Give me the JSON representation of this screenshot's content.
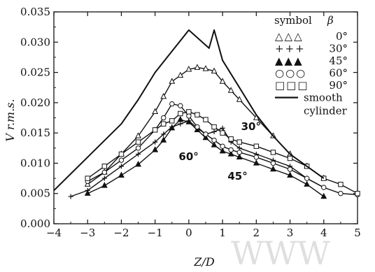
{
  "chart_data": {
    "type": "line",
    "xlabel": "Z/D",
    "ylabel": "V r.m.s.",
    "xlim": [
      -4,
      5
    ],
    "ylim": [
      0,
      0.035
    ],
    "x_ticks": [
      "−4",
      "−3",
      "−2",
      "−1",
      "0",
      "1",
      "2",
      "3",
      "4",
      "5"
    ],
    "y_ticks": [
      "0.000",
      "0.005",
      "0.010",
      "0.015",
      "0.020",
      "0.025",
      "0.030",
      "0.035"
    ],
    "grid": false,
    "legend_position": "top-right",
    "legend_header": {
      "symbol": "symbol",
      "beta": "β"
    },
    "series": [
      {
        "name": "0°",
        "marker": "triangle-open",
        "legend_marker_text": "△△△",
        "x": [
          -3,
          -2.5,
          -2,
          -1.5,
          -1,
          -0.75,
          -0.5,
          -0.25,
          0,
          0.25,
          0.5,
          0.75,
          1,
          1.25,
          1.5,
          2,
          2.5,
          3,
          3.5,
          4
        ],
        "y": [
          0.0065,
          0.0085,
          0.0115,
          0.0145,
          0.0185,
          0.021,
          0.0235,
          0.0245,
          0.0255,
          0.0258,
          0.0256,
          0.0252,
          0.0235,
          0.022,
          0.0205,
          0.0175,
          0.0145,
          0.0115,
          0.0095,
          0.0075
        ]
      },
      {
        "name": "30°",
        "marker": "plus",
        "legend_marker_text": "+++",
        "x": [
          -3.5,
          -3,
          -2.5,
          -2,
          -1.5,
          -1,
          -0.75,
          -0.5,
          -0.25,
          0,
          0.25,
          0.5,
          0.75,
          1,
          1.25,
          1.5,
          2,
          2.5,
          3,
          3.5,
          4
        ],
        "y": [
          0.0045,
          0.0055,
          0.0075,
          0.0095,
          0.0115,
          0.0135,
          0.0148,
          0.016,
          0.0165,
          0.017,
          0.0158,
          0.0148,
          0.0152,
          0.0158,
          0.0135,
          0.0125,
          0.0115,
          0.0105,
          0.0095,
          0.0075,
          0.006
        ]
      },
      {
        "name": "45°",
        "marker": "triangle-filled",
        "legend_marker_text": "▲▲▲",
        "x": [
          -3,
          -2.5,
          -2,
          -1.5,
          -1,
          -0.75,
          -0.5,
          -0.25,
          0,
          0.25,
          0.5,
          0.75,
          1,
          1.25,
          1.5,
          2,
          2.5,
          3,
          3.5,
          4
        ],
        "y": [
          0.005,
          0.0063,
          0.008,
          0.0098,
          0.0122,
          0.0138,
          0.0158,
          0.0172,
          0.0168,
          0.0155,
          0.0142,
          0.013,
          0.012,
          0.0115,
          0.011,
          0.01,
          0.009,
          0.008,
          0.0065,
          0.0045
        ]
      },
      {
        "name": "60°",
        "marker": "circle-open",
        "legend_marker_text": "○○○",
        "x": [
          -3,
          -2.5,
          -2,
          -1.5,
          -1,
          -0.75,
          -0.5,
          -0.25,
          0,
          0.25,
          0.5,
          0.75,
          1,
          1.25,
          1.5,
          2,
          2.5,
          3,
          3.5,
          4,
          4.5,
          5
        ],
        "y": [
          0.007,
          0.0085,
          0.0105,
          0.0125,
          0.0155,
          0.0175,
          0.0198,
          0.0195,
          0.0178,
          0.016,
          0.0148,
          0.0138,
          0.0128,
          0.0122,
          0.0118,
          0.011,
          0.01,
          0.009,
          0.0075,
          0.006,
          0.005,
          0.0048
        ]
      },
      {
        "name": "90°",
        "marker": "square-open",
        "legend_marker_text": "□□□",
        "x": [
          -3,
          -2.5,
          -2,
          -1.5,
          -1,
          -0.75,
          -0.5,
          -0.25,
          0,
          0.25,
          0.5,
          0.75,
          1,
          1.25,
          1.5,
          2,
          2.5,
          3,
          3.5,
          4,
          4.5,
          5
        ],
        "y": [
          0.0075,
          0.0095,
          0.0115,
          0.0135,
          0.0155,
          0.0165,
          0.017,
          0.0182,
          0.0185,
          0.018,
          0.0172,
          0.016,
          0.015,
          0.014,
          0.0135,
          0.0128,
          0.0118,
          0.0108,
          0.0095,
          0.0075,
          0.0065,
          0.005
        ]
      },
      {
        "name": "smooth cylinder",
        "marker": "none",
        "line_width": 2,
        "legend_marker_text": "",
        "legend_lines": [
          "smooth",
          "cylinder"
        ],
        "x": [
          -4,
          -3,
          -2,
          -1.5,
          -1,
          -0.5,
          0,
          0.3,
          0.6,
          0.75,
          1,
          1.5,
          2,
          2.5,
          3,
          3.5,
          4
        ],
        "y": [
          0.0055,
          0.011,
          0.0165,
          0.0205,
          0.025,
          0.0285,
          0.032,
          0.0305,
          0.029,
          0.032,
          0.027,
          0.0225,
          0.018,
          0.0145,
          0.0115,
          0.0095,
          0.0075
        ]
      }
    ],
    "annotations": [
      {
        "text": "30°",
        "x": 1.55,
        "y": 0.0155
      },
      {
        "text": "60°",
        "x": -0.3,
        "y": 0.0105
      },
      {
        "text": "45°",
        "x": 1.15,
        "y": 0.0073
      }
    ],
    "colors": {
      "line": "#111111",
      "background": "#ffffff"
    }
  }
}
